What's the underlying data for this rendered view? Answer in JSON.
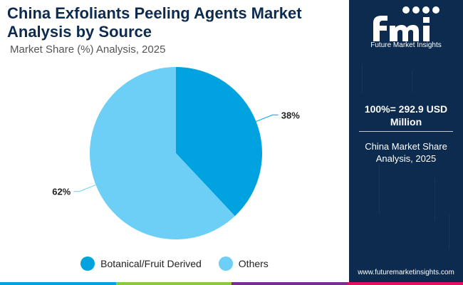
{
  "header": {
    "title": "China Exfoliants Peeling Agents Market Analysis by Source",
    "subtitle": "Market Share (%) Analysis, 2025"
  },
  "chart_data": {
    "type": "pie",
    "slices": [
      {
        "name": "Botanical/Fruit Derived",
        "value": 38,
        "label": "38%",
        "color": "#00a3e0"
      },
      {
        "name": "Others",
        "value": 62,
        "label": "62%",
        "color": "#6dcff6"
      }
    ],
    "start_angle_deg": 0,
    "direction": "clockwise",
    "legend_position": "bottom"
  },
  "sidebar": {
    "logo_text": "Future Market Insights",
    "total_value": "100%= 292.9 USD Million",
    "region_text": "China Market Share Analysis, 2025",
    "website": "www.futuremarketinsights.com"
  },
  "colors": {
    "title": "#0d2b4e",
    "panel": "#0d2b4e",
    "bottom_bar": [
      "#00a3e0",
      "#8dc63f",
      "#7b2d8e",
      "#e0115f"
    ]
  }
}
